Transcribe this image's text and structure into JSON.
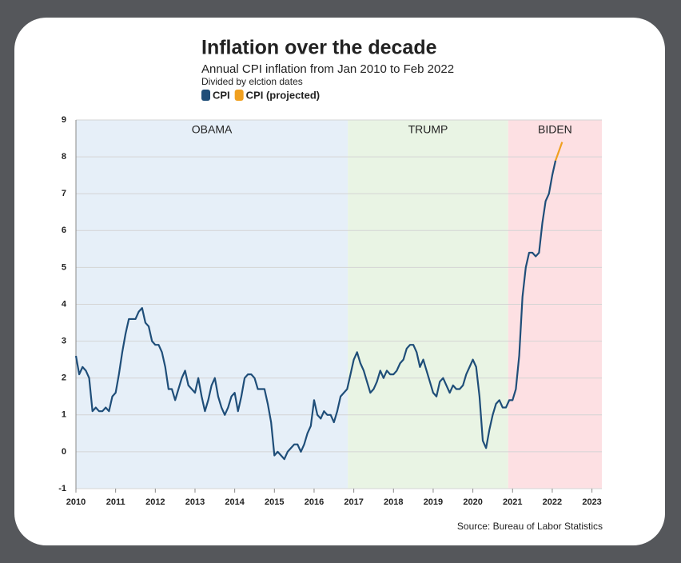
{
  "chart_data": {
    "type": "line",
    "title": "Inflation over the decade",
    "subtitle": "Annual CPI inflation from Jan 2010 to Feb 2022",
    "note": "Divided by elction dates",
    "source": "Source: Bureau of Labor Statistics",
    "xlim": [
      2010,
      2023.25
    ],
    "xticks": [
      2010,
      2011,
      2012,
      2013,
      2014,
      2015,
      2016,
      2017,
      2018,
      2019,
      2020,
      2021,
      2022,
      2023
    ],
    "ylim": [
      -1,
      9
    ],
    "yticks": [
      -1,
      0,
      1,
      2,
      3,
      4,
      5,
      6,
      7,
      8,
      9
    ],
    "grid": true,
    "regions": [
      {
        "label": "OBAMA",
        "start": 2010,
        "end": 2016.85,
        "color": "#e6eff8"
      },
      {
        "label": "TRUMP",
        "start": 2016.85,
        "end": 2020.89,
        "color": "#e9f4e4"
      },
      {
        "label": "BIDEN",
        "start": 2020.89,
        "end": 2023.25,
        "color": "#fde0e3"
      }
    ],
    "series": [
      {
        "name": "CPI",
        "color": "#1f4e79",
        "x": [
          2010,
          2010.083,
          2010.167,
          2010.25,
          2010.333,
          2010.417,
          2010.5,
          2010.583,
          2010.667,
          2010.75,
          2010.833,
          2010.917,
          2011,
          2011.083,
          2011.167,
          2011.25,
          2011.333,
          2011.417,
          2011.5,
          2011.583,
          2011.667,
          2011.75,
          2011.833,
          2011.917,
          2012,
          2012.083,
          2012.167,
          2012.25,
          2012.333,
          2012.417,
          2012.5,
          2012.583,
          2012.667,
          2012.75,
          2012.833,
          2012.917,
          2013,
          2013.083,
          2013.167,
          2013.25,
          2013.333,
          2013.417,
          2013.5,
          2013.583,
          2013.667,
          2013.75,
          2013.833,
          2013.917,
          2014,
          2014.083,
          2014.167,
          2014.25,
          2014.333,
          2014.417,
          2014.5,
          2014.583,
          2014.667,
          2014.75,
          2014.833,
          2014.917,
          2015,
          2015.083,
          2015.167,
          2015.25,
          2015.333,
          2015.417,
          2015.5,
          2015.583,
          2015.667,
          2015.75,
          2015.833,
          2015.917,
          2016,
          2016.083,
          2016.167,
          2016.25,
          2016.333,
          2016.417,
          2016.5,
          2016.583,
          2016.667,
          2016.75,
          2016.833,
          2016.917,
          2017,
          2017.083,
          2017.167,
          2017.25,
          2017.333,
          2017.417,
          2017.5,
          2017.583,
          2017.667,
          2017.75,
          2017.833,
          2017.917,
          2018,
          2018.083,
          2018.167,
          2018.25,
          2018.333,
          2018.417,
          2018.5,
          2018.583,
          2018.667,
          2018.75,
          2018.833,
          2018.917,
          2019,
          2019.083,
          2019.167,
          2019.25,
          2019.333,
          2019.417,
          2019.5,
          2019.583,
          2019.667,
          2019.75,
          2019.833,
          2019.917,
          2020,
          2020.083,
          2020.167,
          2020.25,
          2020.333,
          2020.417,
          2020.5,
          2020.583,
          2020.667,
          2020.75,
          2020.833,
          2020.917,
          2021,
          2021.083,
          2021.167,
          2021.25,
          2021.333,
          2021.417,
          2021.5,
          2021.583,
          2021.667,
          2021.75,
          2021.833,
          2021.917,
          2022,
          2022.083
        ],
        "values": [
          2.6,
          2.1,
          2.3,
          2.2,
          2.0,
          1.1,
          1.2,
          1.1,
          1.1,
          1.2,
          1.1,
          1.5,
          1.6,
          2.1,
          2.7,
          3.2,
          3.6,
          3.6,
          3.6,
          3.8,
          3.9,
          3.5,
          3.4,
          3.0,
          2.9,
          2.9,
          2.7,
          2.3,
          1.7,
          1.7,
          1.4,
          1.7,
          2.0,
          2.2,
          1.8,
          1.7,
          1.6,
          2.0,
          1.5,
          1.1,
          1.4,
          1.8,
          2.0,
          1.5,
          1.2,
          1.0,
          1.2,
          1.5,
          1.6,
          1.1,
          1.5,
          2.0,
          2.1,
          2.1,
          2.0,
          1.7,
          1.7,
          1.7,
          1.3,
          0.8,
          -0.1,
          0.0,
          -0.1,
          -0.2,
          0.0,
          0.1,
          0.2,
          0.2,
          0.0,
          0.2,
          0.5,
          0.7,
          1.4,
          1.0,
          0.9,
          1.1,
          1.0,
          1.0,
          0.8,
          1.1,
          1.5,
          1.6,
          1.7,
          2.1,
          2.5,
          2.7,
          2.4,
          2.2,
          1.9,
          1.6,
          1.7,
          1.9,
          2.2,
          2.0,
          2.2,
          2.1,
          2.1,
          2.2,
          2.4,
          2.5,
          2.8,
          2.9,
          2.9,
          2.7,
          2.3,
          2.5,
          2.2,
          1.9,
          1.6,
          1.5,
          1.9,
          2.0,
          1.8,
          1.6,
          1.8,
          1.7,
          1.7,
          1.8,
          2.1,
          2.3,
          2.5,
          2.3,
          1.5,
          0.3,
          0.1,
          0.6,
          1.0,
          1.3,
          1.4,
          1.2,
          1.2,
          1.4,
          1.4,
          1.7,
          2.6,
          4.2,
          5.0,
          5.4,
          5.4,
          5.3,
          5.4,
          6.2,
          6.8,
          7.0,
          7.5,
          7.9
        ]
      },
      {
        "name": "CPI (projected)",
        "color": "#f0a020",
        "x": [
          2022.083,
          2022.25
        ],
        "values": [
          7.9,
          8.4
        ]
      }
    ]
  }
}
